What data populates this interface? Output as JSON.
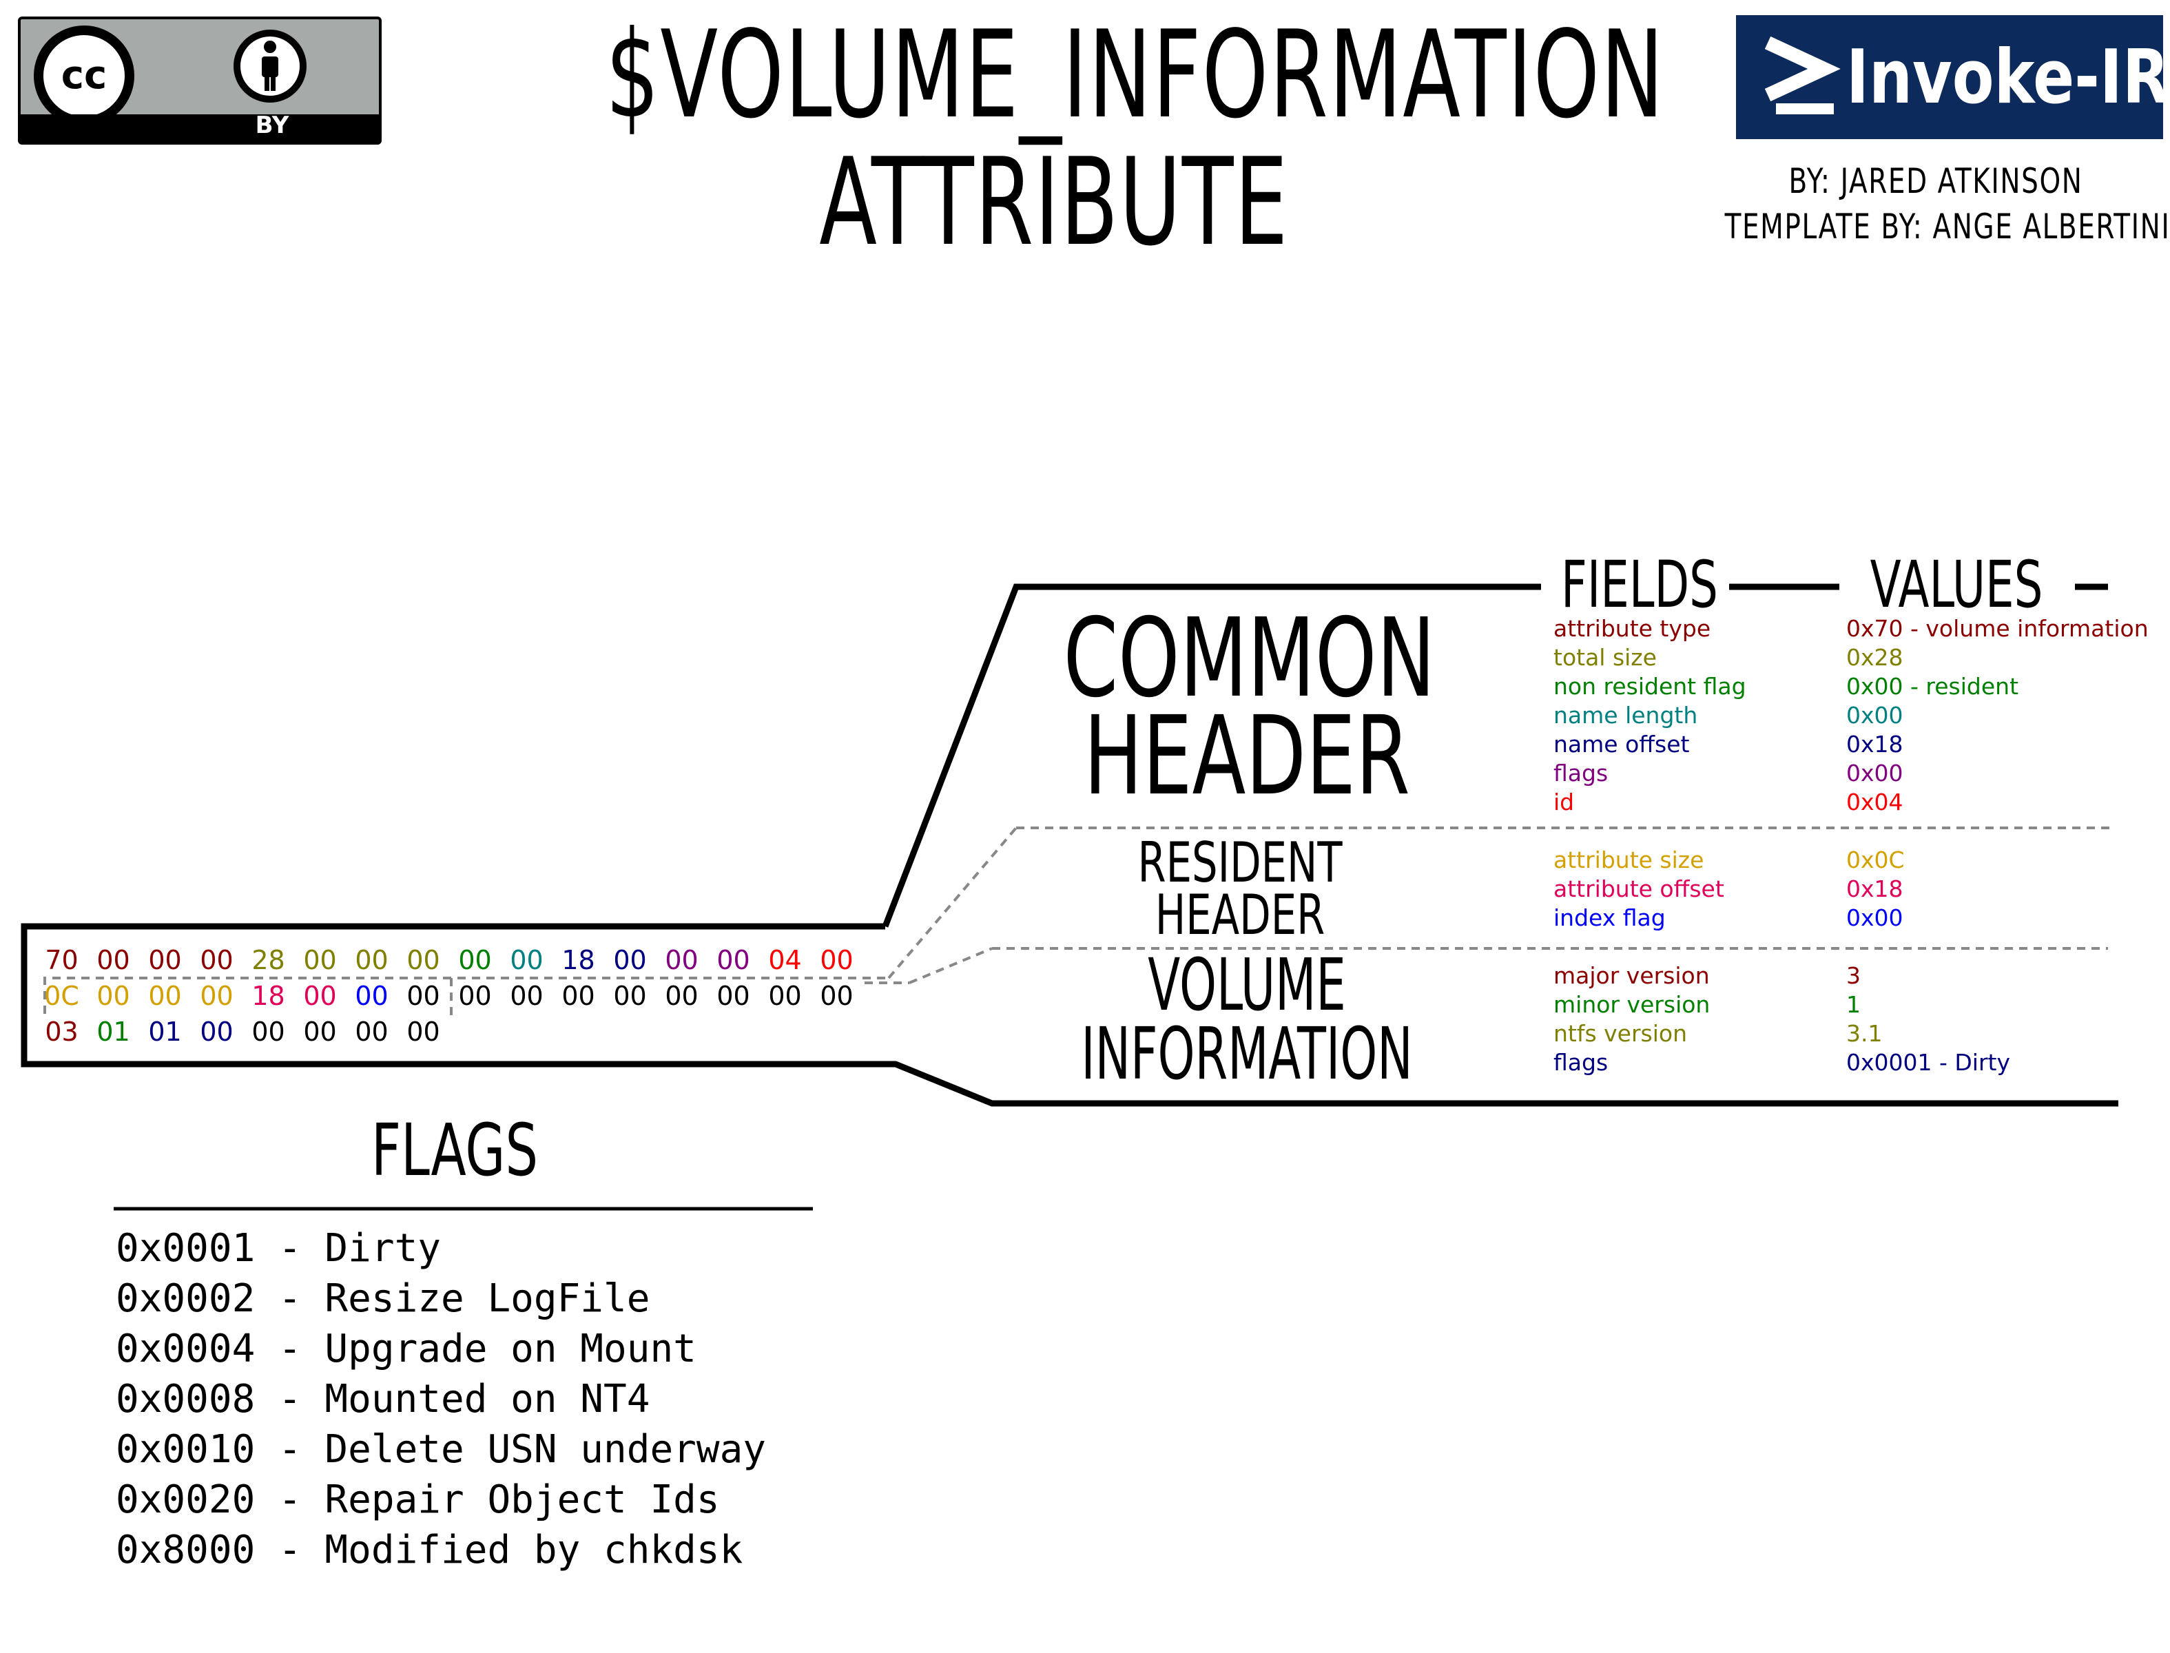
{
  "license": {
    "cc_label": "cc",
    "by_label": "BY"
  },
  "title": {
    "line1": "$VOLUME_INFORMATION",
    "line2": "ATTRIBUTE"
  },
  "logo": {
    "name": "Invoke-IR",
    "prompt_glyph": ">_"
  },
  "credits": {
    "author": "BY: JARED ATKINSON",
    "template": "TEMPLATE BY: ANGE ALBERTINI"
  },
  "columns": {
    "fields": "FIELDS",
    "values": "VALUES"
  },
  "sections": {
    "common_header": {
      "line1": "COMMON",
      "line2": "HEADER"
    },
    "resident_header": {
      "line1": "RESIDENT",
      "line2": "HEADER"
    },
    "volume_information": {
      "line1": "VOLUME",
      "line2": "INFORMATION"
    }
  },
  "hex": {
    "row1": [
      {
        "t": "70",
        "c": "#8b0000"
      },
      {
        "t": "00",
        "c": "#8b0000"
      },
      {
        "t": "00",
        "c": "#8b0000"
      },
      {
        "t": "00",
        "c": "#8b0000"
      },
      {
        "t": "28",
        "c": "#808000"
      },
      {
        "t": "00",
        "c": "#808000"
      },
      {
        "t": "00",
        "c": "#808000"
      },
      {
        "t": "00",
        "c": "#808000"
      },
      {
        "t": "00",
        "c": "#008000"
      },
      {
        "t": "00",
        "c": "#008080"
      },
      {
        "t": "18",
        "c": "#000080"
      },
      {
        "t": "00",
        "c": "#000080"
      },
      {
        "t": "00",
        "c": "#800080"
      },
      {
        "t": "00",
        "c": "#800080"
      },
      {
        "t": "04",
        "c": "#ff0000"
      },
      {
        "t": "00",
        "c": "#ff0000"
      }
    ],
    "row2": [
      {
        "t": "0C",
        "c": "#d4a000"
      },
      {
        "t": "00",
        "c": "#d4a000"
      },
      {
        "t": "00",
        "c": "#d4a000"
      },
      {
        "t": "00",
        "c": "#d4a000"
      },
      {
        "t": "18",
        "c": "#e0005a"
      },
      {
        "t": "00",
        "c": "#e0005a"
      },
      {
        "t": "00",
        "c": "#0000ff"
      },
      {
        "t": "00",
        "c": "#000000"
      },
      {
        "t": "00",
        "c": "#000000"
      },
      {
        "t": "00",
        "c": "#000000"
      },
      {
        "t": "00",
        "c": "#000000"
      },
      {
        "t": "00",
        "c": "#000000"
      },
      {
        "t": "00",
        "c": "#000000"
      },
      {
        "t": "00",
        "c": "#000000"
      },
      {
        "t": "00",
        "c": "#000000"
      },
      {
        "t": "00",
        "c": "#000000"
      }
    ],
    "row3": [
      {
        "t": "03",
        "c": "#8b0000"
      },
      {
        "t": "01",
        "c": "#008000"
      },
      {
        "t": "01",
        "c": "#000080"
      },
      {
        "t": "00",
        "c": "#000080"
      },
      {
        "t": "00",
        "c": "#000000"
      },
      {
        "t": "00",
        "c": "#000000"
      },
      {
        "t": "00",
        "c": "#000000"
      },
      {
        "t": "00",
        "c": "#000000"
      }
    ]
  },
  "common_fields": [
    {
      "field": "attribute type",
      "value": "0x70 - volume information",
      "color": "#8b0000"
    },
    {
      "field": "total size",
      "value": "0x28",
      "color": "#808000"
    },
    {
      "field": "non resident flag",
      "value": "0x00 - resident",
      "color": "#008000"
    },
    {
      "field": "name length",
      "value": "0x00",
      "color": "#008080"
    },
    {
      "field": "name offset",
      "value": "0x18",
      "color": "#000080"
    },
    {
      "field": "flags",
      "value": "0x00",
      "color": "#800080"
    },
    {
      "field": "id",
      "value": "0x04",
      "color": "#ff0000"
    }
  ],
  "resident_fields": [
    {
      "field": "attribute size",
      "value": "0x0C",
      "color": "#d4a000"
    },
    {
      "field": "attribute offset",
      "value": "0x18",
      "color": "#e0005a"
    },
    {
      "field": "index flag",
      "value": "0x00",
      "color": "#0000ff"
    }
  ],
  "volume_fields": [
    {
      "field": "major version",
      "value": "3",
      "color": "#8b0000"
    },
    {
      "field": "minor version",
      "value": "1",
      "color": "#008000"
    },
    {
      "field": "ntfs version",
      "value": "3.1",
      "color": "#808000"
    },
    {
      "field": "flags",
      "value": "0x0001 - Dirty",
      "color": "#000080"
    }
  ],
  "flags_section": {
    "title": "FLAGS",
    "items": [
      "0x0001 - Dirty",
      "0x0002 - Resize LogFile",
      "0x0004 - Upgrade on Mount",
      "0x0008 - Mounted on NT4",
      "0x0010 - Delete USN underway",
      "0x0020 - Repair Object Ids",
      "0x8000 - Modified by chkdsk"
    ]
  }
}
